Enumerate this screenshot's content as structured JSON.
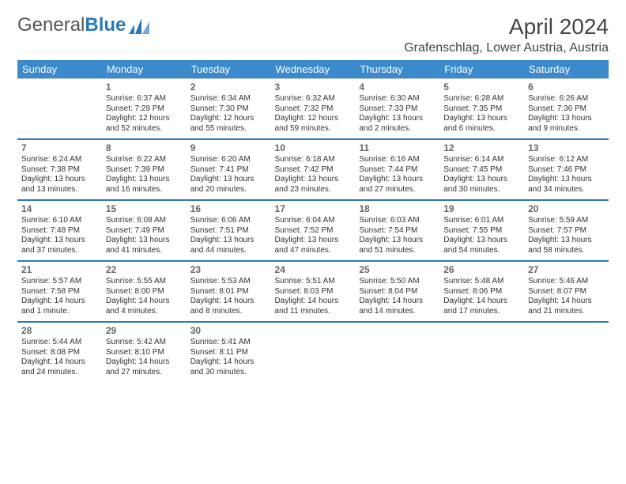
{
  "brand": {
    "general": "General",
    "blue": "Blue"
  },
  "title": "April 2024",
  "location": "Grafenschlag, Lower Austria, Austria",
  "colors": {
    "header_bg": "#3b8acb",
    "accent": "#2a7ab9",
    "text": "#333333",
    "bg": "#ffffff"
  },
  "day_headers": [
    "Sunday",
    "Monday",
    "Tuesday",
    "Wednesday",
    "Thursday",
    "Friday",
    "Saturday"
  ],
  "weeks": [
    [
      null,
      {
        "n": "1",
        "sr": "Sunrise: 6:37 AM",
        "ss": "Sunset: 7:29 PM",
        "d1": "Daylight: 12 hours",
        "d2": "and 52 minutes."
      },
      {
        "n": "2",
        "sr": "Sunrise: 6:34 AM",
        "ss": "Sunset: 7:30 PM",
        "d1": "Daylight: 12 hours",
        "d2": "and 55 minutes."
      },
      {
        "n": "3",
        "sr": "Sunrise: 6:32 AM",
        "ss": "Sunset: 7:32 PM",
        "d1": "Daylight: 12 hours",
        "d2": "and 59 minutes."
      },
      {
        "n": "4",
        "sr": "Sunrise: 6:30 AM",
        "ss": "Sunset: 7:33 PM",
        "d1": "Daylight: 13 hours",
        "d2": "and 2 minutes."
      },
      {
        "n": "5",
        "sr": "Sunrise: 6:28 AM",
        "ss": "Sunset: 7:35 PM",
        "d1": "Daylight: 13 hours",
        "d2": "and 6 minutes."
      },
      {
        "n": "6",
        "sr": "Sunrise: 6:26 AM",
        "ss": "Sunset: 7:36 PM",
        "d1": "Daylight: 13 hours",
        "d2": "and 9 minutes."
      }
    ],
    [
      {
        "n": "7",
        "sr": "Sunrise: 6:24 AM",
        "ss": "Sunset: 7:38 PM",
        "d1": "Daylight: 13 hours",
        "d2": "and 13 minutes."
      },
      {
        "n": "8",
        "sr": "Sunrise: 6:22 AM",
        "ss": "Sunset: 7:39 PM",
        "d1": "Daylight: 13 hours",
        "d2": "and 16 minutes."
      },
      {
        "n": "9",
        "sr": "Sunrise: 6:20 AM",
        "ss": "Sunset: 7:41 PM",
        "d1": "Daylight: 13 hours",
        "d2": "and 20 minutes."
      },
      {
        "n": "10",
        "sr": "Sunrise: 6:18 AM",
        "ss": "Sunset: 7:42 PM",
        "d1": "Daylight: 13 hours",
        "d2": "and 23 minutes."
      },
      {
        "n": "11",
        "sr": "Sunrise: 6:16 AM",
        "ss": "Sunset: 7:44 PM",
        "d1": "Daylight: 13 hours",
        "d2": "and 27 minutes."
      },
      {
        "n": "12",
        "sr": "Sunrise: 6:14 AM",
        "ss": "Sunset: 7:45 PM",
        "d1": "Daylight: 13 hours",
        "d2": "and 30 minutes."
      },
      {
        "n": "13",
        "sr": "Sunrise: 6:12 AM",
        "ss": "Sunset: 7:46 PM",
        "d1": "Daylight: 13 hours",
        "d2": "and 34 minutes."
      }
    ],
    [
      {
        "n": "14",
        "sr": "Sunrise: 6:10 AM",
        "ss": "Sunset: 7:48 PM",
        "d1": "Daylight: 13 hours",
        "d2": "and 37 minutes."
      },
      {
        "n": "15",
        "sr": "Sunrise: 6:08 AM",
        "ss": "Sunset: 7:49 PM",
        "d1": "Daylight: 13 hours",
        "d2": "and 41 minutes."
      },
      {
        "n": "16",
        "sr": "Sunrise: 6:06 AM",
        "ss": "Sunset: 7:51 PM",
        "d1": "Daylight: 13 hours",
        "d2": "and 44 minutes."
      },
      {
        "n": "17",
        "sr": "Sunrise: 6:04 AM",
        "ss": "Sunset: 7:52 PM",
        "d1": "Daylight: 13 hours",
        "d2": "and 47 minutes."
      },
      {
        "n": "18",
        "sr": "Sunrise: 6:03 AM",
        "ss": "Sunset: 7:54 PM",
        "d1": "Daylight: 13 hours",
        "d2": "and 51 minutes."
      },
      {
        "n": "19",
        "sr": "Sunrise: 6:01 AM",
        "ss": "Sunset: 7:55 PM",
        "d1": "Daylight: 13 hours",
        "d2": "and 54 minutes."
      },
      {
        "n": "20",
        "sr": "Sunrise: 5:59 AM",
        "ss": "Sunset: 7:57 PM",
        "d1": "Daylight: 13 hours",
        "d2": "and 58 minutes."
      }
    ],
    [
      {
        "n": "21",
        "sr": "Sunrise: 5:57 AM",
        "ss": "Sunset: 7:58 PM",
        "d1": "Daylight: 14 hours",
        "d2": "and 1 minute."
      },
      {
        "n": "22",
        "sr": "Sunrise: 5:55 AM",
        "ss": "Sunset: 8:00 PM",
        "d1": "Daylight: 14 hours",
        "d2": "and 4 minutes."
      },
      {
        "n": "23",
        "sr": "Sunrise: 5:53 AM",
        "ss": "Sunset: 8:01 PM",
        "d1": "Daylight: 14 hours",
        "d2": "and 8 minutes."
      },
      {
        "n": "24",
        "sr": "Sunrise: 5:51 AM",
        "ss": "Sunset: 8:03 PM",
        "d1": "Daylight: 14 hours",
        "d2": "and 11 minutes."
      },
      {
        "n": "25",
        "sr": "Sunrise: 5:50 AM",
        "ss": "Sunset: 8:04 PM",
        "d1": "Daylight: 14 hours",
        "d2": "and 14 minutes."
      },
      {
        "n": "26",
        "sr": "Sunrise: 5:48 AM",
        "ss": "Sunset: 8:06 PM",
        "d1": "Daylight: 14 hours",
        "d2": "and 17 minutes."
      },
      {
        "n": "27",
        "sr": "Sunrise: 5:46 AM",
        "ss": "Sunset: 8:07 PM",
        "d1": "Daylight: 14 hours",
        "d2": "and 21 minutes."
      }
    ],
    [
      {
        "n": "28",
        "sr": "Sunrise: 5:44 AM",
        "ss": "Sunset: 8:08 PM",
        "d1": "Daylight: 14 hours",
        "d2": "and 24 minutes."
      },
      {
        "n": "29",
        "sr": "Sunrise: 5:42 AM",
        "ss": "Sunset: 8:10 PM",
        "d1": "Daylight: 14 hours",
        "d2": "and 27 minutes."
      },
      {
        "n": "30",
        "sr": "Sunrise: 5:41 AM",
        "ss": "Sunset: 8:11 PM",
        "d1": "Daylight: 14 hours",
        "d2": "and 30 minutes."
      },
      null,
      null,
      null,
      null
    ]
  ]
}
